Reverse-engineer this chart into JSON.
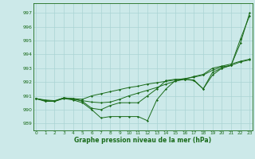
{
  "xlabel": "Graphe pression niveau de la mer (hPa)",
  "ylim": [
    988.5,
    997.7
  ],
  "xlim": [
    -0.3,
    23.3
  ],
  "yticks": [
    989,
    990,
    991,
    992,
    993,
    994,
    995,
    996,
    997
  ],
  "xticks": [
    0,
    1,
    2,
    3,
    4,
    5,
    6,
    7,
    8,
    9,
    10,
    11,
    12,
    13,
    14,
    15,
    16,
    17,
    18,
    19,
    20,
    21,
    22,
    23
  ],
  "bg_color": "#cce9e9",
  "grid_color": "#aad4d4",
  "line_color": "#1a6b1a",
  "series1": [
    990.8,
    990.6,
    990.6,
    990.8,
    990.7,
    990.5,
    990.0,
    989.4,
    989.5,
    989.5,
    989.5,
    989.5,
    989.2,
    990.7,
    991.5,
    992.1,
    992.2,
    992.1,
    991.5,
    992.7,
    993.0,
    993.2,
    995.1,
    996.8
  ],
  "series2": [
    990.8,
    990.65,
    990.6,
    990.85,
    990.75,
    990.65,
    990.55,
    990.5,
    990.55,
    990.75,
    991.0,
    991.2,
    991.4,
    991.6,
    991.85,
    992.05,
    992.2,
    992.4,
    992.55,
    993.0,
    993.15,
    993.3,
    993.5,
    993.65
  ],
  "series3": [
    990.8,
    990.7,
    990.65,
    990.85,
    990.8,
    990.75,
    991.0,
    991.15,
    991.3,
    991.45,
    991.6,
    991.7,
    991.85,
    991.95,
    992.05,
    992.15,
    992.25,
    992.35,
    992.5,
    992.85,
    993.1,
    993.2,
    993.45,
    993.6
  ],
  "series4": [
    990.8,
    990.65,
    990.6,
    990.85,
    990.8,
    990.6,
    990.1,
    990.0,
    990.3,
    990.5,
    990.5,
    990.5,
    991.0,
    991.5,
    992.1,
    992.2,
    992.2,
    992.15,
    991.5,
    992.5,
    993.0,
    993.2,
    994.8,
    997.0
  ]
}
